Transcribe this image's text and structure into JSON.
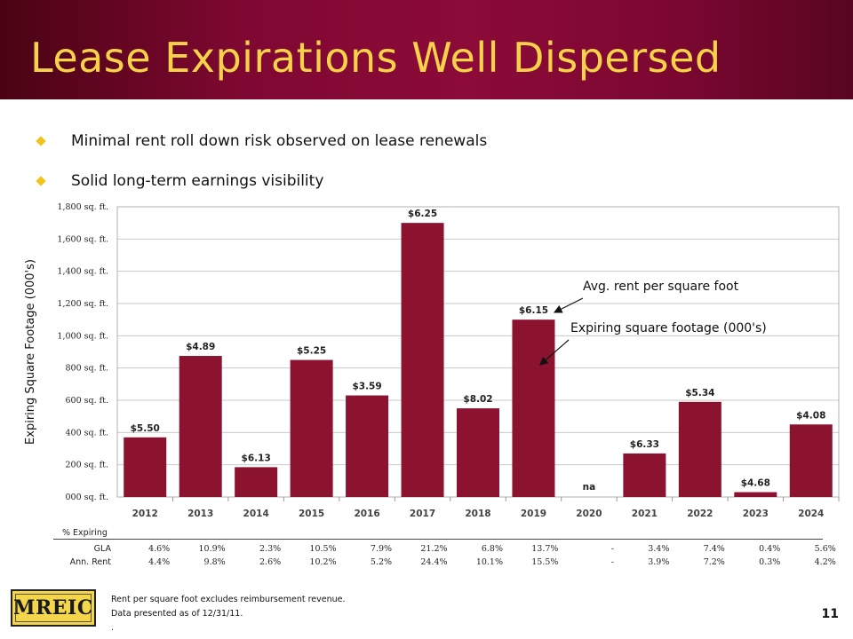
{
  "title": "Lease Expirations Well Dispersed",
  "bullets": [
    "Minimal rent roll down risk observed on lease renewals",
    "Solid long-term earnings visibility"
  ],
  "colors": {
    "bar": "#8c1330",
    "title": "#f6d24a",
    "bullet": "#f0c419",
    "header": "#8c0b38"
  },
  "chart_data": {
    "type": "bar",
    "ylabel": "Expiring Square Footage (000's)",
    "ylim": [
      0,
      1800
    ],
    "yticks": [
      0,
      200,
      400,
      600,
      800,
      1000,
      1200,
      1400,
      1600,
      1800
    ],
    "ytick_labels": [
      "000 sq. ft.",
      "200 sq. ft.",
      "400 sq. ft.",
      "600 sq. ft.",
      "800 sq. ft.",
      "1,000 sq. ft.",
      "1,200 sq. ft.",
      "1,400 sq. ft.",
      "1,600 sq. ft.",
      "1,800 sq. ft."
    ],
    "grid": true,
    "categories": [
      "2012",
      "2013",
      "2014",
      "2015",
      "2016",
      "2017",
      "2018",
      "2019",
      "2020",
      "2021",
      "2022",
      "2023",
      "2024"
    ],
    "values": [
      370,
      875,
      185,
      850,
      630,
      1700,
      550,
      1100,
      0,
      270,
      590,
      30,
      450
    ],
    "data_labels": [
      "$5.50",
      "$4.89",
      "$6.13",
      "$5.25",
      "$3.59",
      "$6.25",
      "$8.02",
      "$6.15",
      "na",
      "$6.33",
      "$5.34",
      "$4.68",
      "$4.08"
    ],
    "annotations": [
      "Avg. rent per square foot",
      "Expiring square footage (000's)"
    ]
  },
  "pct_table": {
    "title": "% Expiring",
    "rows": [
      {
        "label": "GLA",
        "values": [
          "4.6%",
          "10.9%",
          "2.3%",
          "10.5%",
          "7.9%",
          "21.2%",
          "6.8%",
          "13.7%",
          "-",
          "3.4%",
          "7.4%",
          "0.4%",
          "5.6%"
        ]
      },
      {
        "label": "Ann. Rent",
        "values": [
          "4.4%",
          "9.8%",
          "2.6%",
          "10.2%",
          "5.2%",
          "24.4%",
          "10.1%",
          "15.5%",
          "-",
          "3.9%",
          "7.2%",
          "0.3%",
          "4.2%"
        ]
      }
    ]
  },
  "logo_text": "MREIC",
  "footnotes": [
    "Rent per square foot excludes reimbursement revenue.",
    "Data presented as of 12/31/11.",
    "."
  ],
  "page_number": "11"
}
